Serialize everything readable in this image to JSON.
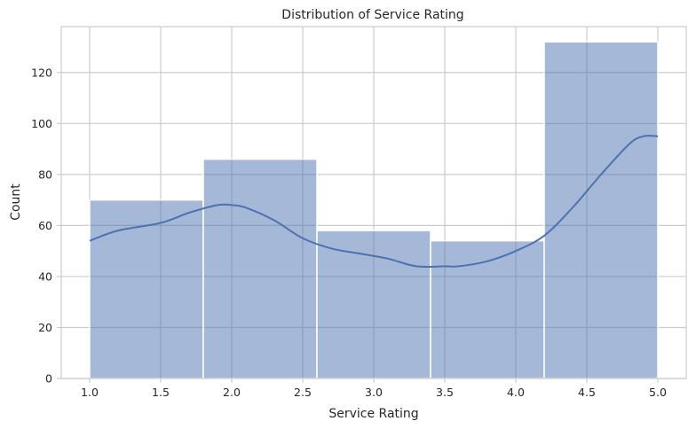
{
  "chart_data": {
    "type": "bar",
    "subtype": "histogram-with-kde",
    "title": "Distribution of Service Rating",
    "xlabel": "Service Rating",
    "ylabel": "Count",
    "xlim": [
      0.8,
      5.2
    ],
    "ylim": [
      0,
      138
    ],
    "xticks": [
      1.0,
      1.5,
      2.0,
      2.5,
      3.0,
      3.5,
      4.0,
      4.5,
      5.0
    ],
    "xtick_labels": [
      "1.0",
      "1.5",
      "2.0",
      "2.5",
      "3.0",
      "3.5",
      "4.0",
      "4.5",
      "5.0"
    ],
    "yticks": [
      0,
      20,
      40,
      60,
      80,
      100,
      120
    ],
    "ytick_labels": [
      "0",
      "20",
      "40",
      "60",
      "80",
      "100",
      "120"
    ],
    "bins": [
      {
        "x0": 1.0,
        "x1": 1.8,
        "count": 70
      },
      {
        "x0": 1.8,
        "x1": 2.6,
        "count": 86
      },
      {
        "x0": 2.6,
        "x1": 3.4,
        "count": 58
      },
      {
        "x0": 3.4,
        "x1": 4.2,
        "count": 54
      },
      {
        "x0": 4.2,
        "x1": 5.0,
        "count": 132
      }
    ],
    "kde": {
      "x": [
        1.0,
        1.2,
        1.5,
        1.7,
        1.9,
        2.0,
        2.1,
        2.3,
        2.5,
        2.7,
        2.9,
        3.1,
        3.3,
        3.5,
        3.6,
        3.8,
        4.0,
        4.2,
        4.4,
        4.6,
        4.8,
        4.9,
        5.0
      ],
      "y": [
        54,
        58,
        61,
        65,
        68,
        68,
        67,
        62,
        55,
        51,
        49,
        47,
        44,
        44,
        44,
        46,
        50,
        56,
        67,
        80,
        92,
        95,
        95
      ]
    },
    "grid": true,
    "color": "#4c72b0"
  }
}
